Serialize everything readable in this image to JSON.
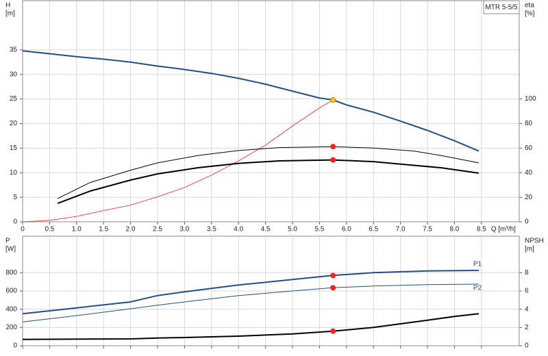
{
  "chart_data": [
    {
      "type": "line",
      "title": "MTR 5-5/5",
      "y_label": "H",
      "y_unit": "[m]",
      "y2_label": "eta",
      "y2_unit": "[%]",
      "x_label": "Q [m³/h]",
      "xlim": [
        0,
        9.2
      ],
      "xticks": [
        0,
        0.5,
        {
          "value": 1,
          "label": "1.0"
        },
        1.5,
        {
          "value": 2,
          "label": "2.0"
        },
        2.5,
        {
          "value": 3,
          "label": "3.0"
        },
        3.5,
        {
          "value": 4,
          "label": "4.0"
        },
        4.5,
        {
          "value": 5,
          "label": "5.0"
        },
        5.5,
        {
          "value": 6,
          "label": "6.0"
        },
        6.5,
        {
          "value": 7,
          "label": "7.0"
        },
        7.5,
        {
          "value": 8,
          "label": "8.0"
        },
        8.5
      ],
      "ylim": [
        0,
        45
      ],
      "yticks": [
        0,
        5,
        10,
        15,
        20,
        25,
        30,
        35
      ],
      "y2lim": [
        0,
        180
      ],
      "y2ticks": [
        0,
        20,
        40,
        60,
        80,
        100
      ],
      "grid": true,
      "series": [
        {
          "color": "#1f4e8c",
          "width": 2,
          "x": [
            0,
            0.5,
            1,
            1.5,
            2,
            2.5,
            3,
            3.5,
            4,
            4.5,
            5,
            5.5,
            5.75,
            6,
            6.5,
            7,
            7.5,
            8,
            8.45
          ],
          "values": [
            34.8,
            34.2,
            33.6,
            33.1,
            32.5,
            31.7,
            31.0,
            30.2,
            29.2,
            28.0,
            26.6,
            25.2,
            24.8,
            23.8,
            22.3,
            20.5,
            18.6,
            16.5,
            14.4
          ]
        },
        {
          "color": "#ff2020",
          "width": 0.8,
          "x": [
            0,
            0.5,
            1,
            1.5,
            2,
            2.5,
            3,
            3.5,
            4,
            4.5,
            5,
            5.5,
            5.78
          ],
          "values": [
            0,
            0.3,
            1.1,
            2.3,
            3.4,
            5.1,
            7.0,
            9.5,
            12.4,
            15.6,
            19.5,
            23.2,
            25
          ]
        },
        {
          "color": "#000000",
          "width": 1,
          "axis": "y2",
          "x": [
            0.65,
            1.25,
            2,
            2.5,
            3.25,
            4,
            4.75,
            5.75,
            6.5,
            7.25,
            7.75,
            8.45
          ],
          "values": [
            19,
            32,
            42,
            48,
            54,
            58,
            60.4,
            61.2,
            60,
            57.6,
            54,
            48
          ]
        },
        {
          "color": "#000000",
          "width": 2,
          "axis": "y2",
          "x": [
            0.65,
            1.25,
            2,
            2.5,
            3.25,
            4,
            4.75,
            5.75,
            6.5,
            7.25,
            7.75,
            8.45
          ],
          "values": [
            15,
            25,
            34,
            39,
            44,
            47.6,
            49.6,
            50.4,
            49,
            46,
            44,
            39.6
          ]
        },
        {
          "color": "#ff2020",
          "marker": true,
          "axis": "y2",
          "x": [
            5.75,
            5.75
          ],
          "values": [
            61.2,
            50.4
          ]
        },
        {
          "color": "#f5c518",
          "marker": true,
          "x": [
            5.75
          ],
          "values": [
            24.8
          ]
        }
      ]
    },
    {
      "type": "line",
      "y_label": "P",
      "y_unit": "[W]",
      "y2_label": "NPSH",
      "y2_unit": "[m]",
      "xlim": [
        0,
        9.2
      ],
      "ylim": [
        0,
        1200
      ],
      "yticks": [
        0,
        200,
        400,
        600,
        800
      ],
      "y2lim": [
        0,
        12
      ],
      "y2ticks": [
        0,
        2,
        4,
        6,
        8
      ],
      "grid": true,
      "series": [
        {
          "name": "P1",
          "color": "#1f4e8c",
          "width": 2,
          "x": [
            0,
            1,
            2,
            2.5,
            3,
            4,
            5,
            5.75,
            6.5,
            7.5,
            8.45
          ],
          "values": [
            350,
            415,
            480,
            550,
            590,
            665,
            725,
            770,
            800,
            820,
            825
          ]
        },
        {
          "name": "P2",
          "color": "#1f4e8c",
          "width": 1,
          "x": [
            0,
            1,
            2,
            2.5,
            3,
            4,
            5,
            5.75,
            6.5,
            7.5,
            8.45
          ],
          "values": [
            260,
            330,
            405,
            445,
            480,
            550,
            600,
            635,
            655,
            670,
            675
          ]
        },
        {
          "color": "#000000",
          "width": 2,
          "axis": "y2",
          "x": [
            0,
            2,
            2.5,
            3,
            4,
            5,
            5.75,
            6.5,
            7,
            7.5,
            8,
            8.45
          ],
          "values": [
            0.7,
            0.75,
            0.85,
            0.9,
            1.05,
            1.3,
            1.6,
            2.0,
            2.4,
            2.8,
            3.2,
            3.5
          ]
        },
        {
          "color": "#ff2020",
          "marker": true,
          "x": [
            5.75,
            5.75
          ],
          "values": [
            770,
            635
          ]
        },
        {
          "color": "#ff2020",
          "marker": true,
          "axis": "y2",
          "x": [
            5.75
          ],
          "values": [
            1.6
          ]
        }
      ]
    }
  ]
}
